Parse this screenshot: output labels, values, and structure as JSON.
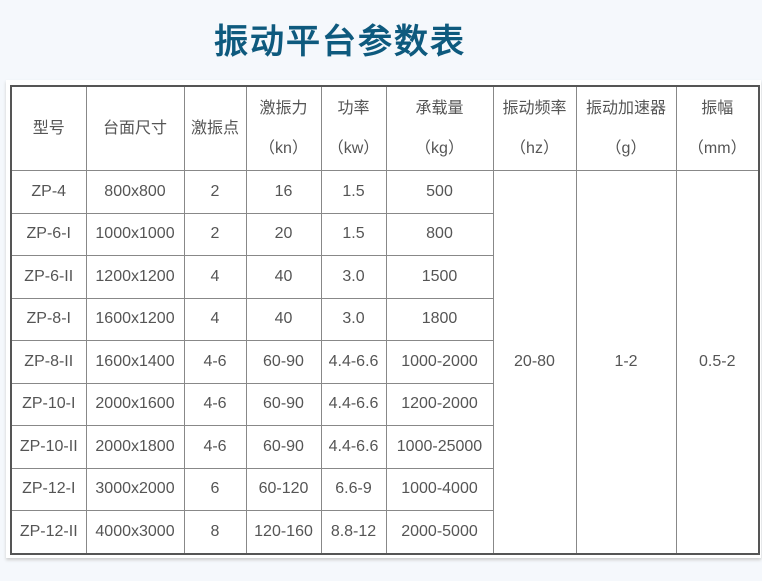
{
  "title": "振动平台参数表",
  "title_color": "#0e5a7e",
  "table": {
    "headers": [
      {
        "label": "型号",
        "unit": ""
      },
      {
        "label": "台面尺寸",
        "unit": ""
      },
      {
        "label": "激振点",
        "unit": ""
      },
      {
        "label": "激振力",
        "unit": "（kn）"
      },
      {
        "label": "功率",
        "unit": "（kw）"
      },
      {
        "label": "承载量",
        "unit": "（kg）"
      },
      {
        "label": "振动频率",
        "unit": "（hz）"
      },
      {
        "label": "振动加速器",
        "unit": "（g）"
      },
      {
        "label": "振幅",
        "unit": "（mm）"
      }
    ],
    "rows": [
      [
        "ZP-4",
        "800x800",
        "2",
        "16",
        "1.5",
        "500"
      ],
      [
        "ZP-6-I",
        "1000x1000",
        "2",
        "20",
        "1.5",
        "800"
      ],
      [
        "ZP-6-II",
        "1200x1200",
        "4",
        "40",
        "3.0",
        "1500"
      ],
      [
        "ZP-8-I",
        "1600x1200",
        "4",
        "40",
        "3.0",
        "1800"
      ],
      [
        "ZP-8-II",
        "1600x1400",
        "4-6",
        "60-90",
        "4.4-6.6",
        "1000-2000"
      ],
      [
        "ZP-10-I",
        "2000x1600",
        "4-6",
        "60-90",
        "4.4-6.6",
        "1200-2000"
      ],
      [
        "ZP-10-II",
        "2000x1800",
        "4-6",
        "60-90",
        "4.4-6.6",
        "1000-25000"
      ],
      [
        "ZP-12-I",
        "3000x2000",
        "6",
        "60-120",
        "6.6-9",
        "1000-4000"
      ],
      [
        "ZP-12-II",
        "4000x3000",
        "8",
        "120-160",
        "8.8-12",
        "2000-5000"
      ]
    ],
    "shared": {
      "frequency": "20-80",
      "acceleration": "1-2",
      "amplitude": "0.5-2"
    }
  }
}
